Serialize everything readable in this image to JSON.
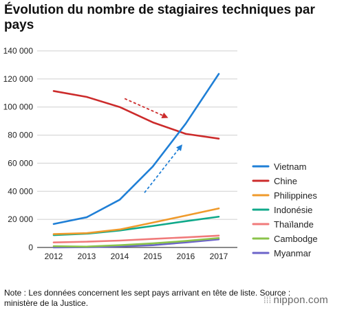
{
  "chart_data": {
    "type": "line",
    "title": "Évolution du nombre de stagiaires techniques par pays",
    "xlabel": "",
    "ylabel": "",
    "x": [
      2012,
      2013,
      2014,
      2015,
      2016,
      2017
    ],
    "ylim": [
      0,
      140000
    ],
    "y_ticks": [
      0,
      20000,
      40000,
      60000,
      80000,
      100000,
      120000,
      140000
    ],
    "y_tick_labels": [
      "0",
      "20 000",
      "40 000",
      "60 000",
      "80 000",
      "100 000",
      "120 000",
      "140 000"
    ],
    "x_tick_labels": [
      "2012",
      "2013",
      "2014",
      "2015",
      "2016",
      "2017"
    ],
    "grid": "horizontal",
    "legend_position": "right",
    "series": [
      {
        "name": "Vietnam",
        "color": "#1f7fd6",
        "values": [
          16700,
          21500,
          34000,
          57600,
          88200,
          123600
        ]
      },
      {
        "name": "Chine",
        "color": "#cc2b2b",
        "values": [
          111400,
          107200,
          100000,
          89100,
          80900,
          77500
        ]
      },
      {
        "name": "Philippines",
        "color": "#ef9a2b",
        "values": [
          9500,
          10200,
          12800,
          17700,
          22700,
          27800
        ]
      },
      {
        "name": "Indonésie",
        "color": "#0fa98a",
        "values": [
          8800,
          9800,
          12100,
          15300,
          18700,
          21900
        ]
      },
      {
        "name": "Thaïlande",
        "color": "#f07a7a",
        "values": [
          3600,
          4100,
          4900,
          6100,
          7200,
          8400
        ]
      },
      {
        "name": "Cambodge",
        "color": "#8bc34a",
        "values": [
          900,
          600,
          1600,
          2900,
          4600,
          6700
        ]
      },
      {
        "name": "Myanmar",
        "color": "#6b63c9",
        "values": [
          0,
          200,
          700,
          1600,
          3600,
          5800
        ]
      }
    ],
    "annotations": [
      {
        "type": "dashed-arrow",
        "color": "#cc2b2b",
        "direction": "down",
        "from": [
          2014.15,
          106000
        ],
        "to": [
          2015.4,
          93000
        ]
      },
      {
        "type": "dashed-arrow",
        "color": "#1f7fd6",
        "direction": "up",
        "from": [
          2014.75,
          39000
        ],
        "to": [
          2015.85,
          72000
        ]
      }
    ]
  },
  "note": "Note : Les données concernent les sept pays arrivant en tête de liste. Source : ministère de la Justice.",
  "brand": {
    "dots": "⁞⁞⁞",
    "text": "nippon.com"
  }
}
